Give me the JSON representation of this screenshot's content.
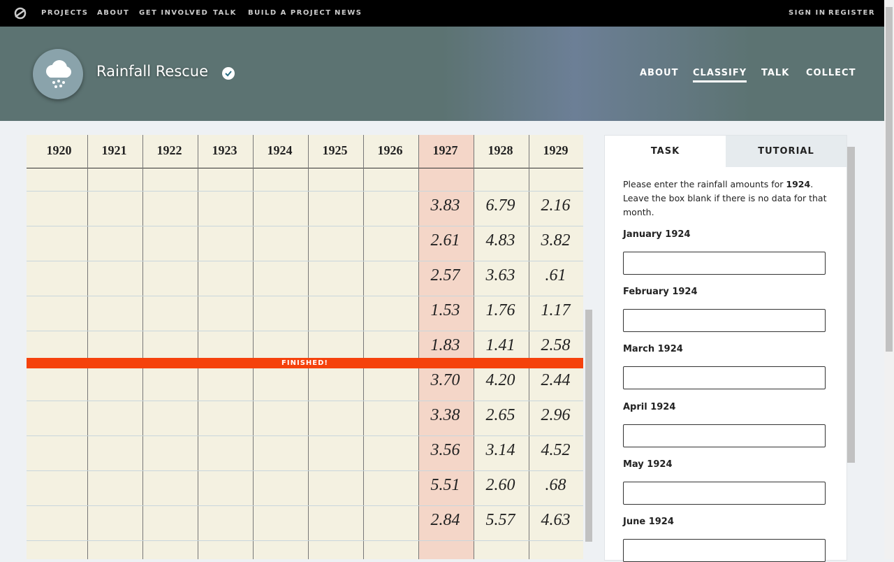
{
  "topnav": {
    "items": [
      "PROJECTS",
      "ABOUT",
      "GET INVOLVED",
      "TALK",
      "BUILD A PROJECT",
      "NEWS"
    ],
    "account": [
      "SIGN IN",
      "REGISTER"
    ]
  },
  "project": {
    "title": "Rainfall Rescue",
    "nav": [
      "ABOUT",
      "CLASSIFY",
      "TALK",
      "COLLECT"
    ],
    "active_nav": 1
  },
  "subject": {
    "years": [
      "1920",
      "1921",
      "1922",
      "1923",
      "1924",
      "1925",
      "1926",
      "1927",
      "1928",
      "1929"
    ],
    "rows": [
      [
        "3.83",
        "6.79",
        "2.16"
      ],
      [
        "2.61",
        "4.83",
        "3.82"
      ],
      [
        "2.57",
        "3.63",
        ".61"
      ],
      [
        "1.53",
        "1.76",
        "1.17"
      ],
      [
        "1.83",
        "1.41",
        "2.58"
      ],
      [
        "3.70",
        "4.20",
        "2.44"
      ],
      [
        "3.38",
        "2.65",
        "2.96"
      ],
      [
        "3.56",
        "3.14",
        "4.52"
      ],
      [
        "5.51",
        "2.60",
        ".68"
      ],
      [
        "2.84",
        "5.57",
        "4.63"
      ]
    ],
    "banner": "FINISHED!"
  },
  "task": {
    "tabs": [
      "TASK",
      "TUTORIAL"
    ],
    "instruction": {
      "before": "Please enter the rainfall amounts for ",
      "year": "1924",
      "after": ". Leave the box blank if there is no data for that month."
    },
    "fields": [
      "January 1924",
      "February 1924",
      "March 1924",
      "April 1924",
      "May 1924",
      "June 1924"
    ]
  }
}
